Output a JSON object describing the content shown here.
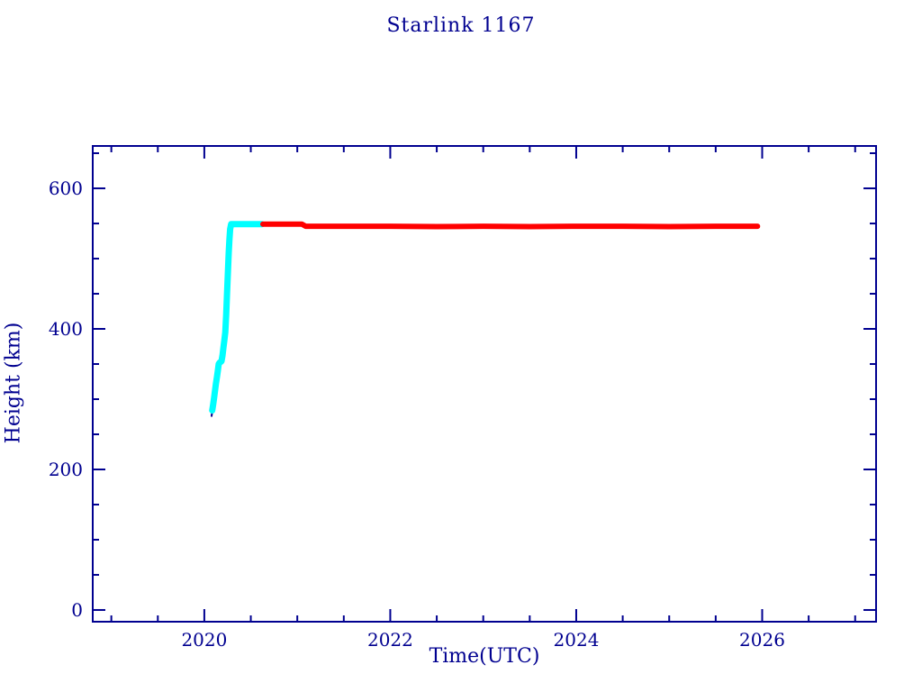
{
  "colors": {
    "background": "#ffffff",
    "axis": "#000090",
    "text": "#000090",
    "phase_raising": "#00ffff",
    "phase_operational": "#ff0000"
  },
  "chart_data": {
    "type": "line",
    "title": "Starlink 1167",
    "xlabel": "Time(UTC)",
    "ylabel": "Height (km)",
    "xlim": [
      2018.8,
      2027.225
    ],
    "ylim": [
      -16.7,
      660.3
    ],
    "grid": false,
    "legend": "none",
    "x_major_ticks": [
      2020,
      2022,
      2024,
      2026
    ],
    "x_tick_labels": [
      "2020",
      "2022",
      "2024",
      "2026"
    ],
    "x_minor_step": 0.5,
    "y_major_ticks": [
      0,
      200,
      400,
      600
    ],
    "y_tick_labels": [
      "0",
      "200",
      "400",
      "600"
    ],
    "y_minor_step": 50,
    "series": [
      {
        "name": "track-start-stub",
        "color": "#000090",
        "width": 2,
        "points": [
          [
            2020.078,
            276
          ],
          [
            2020.088,
            285
          ]
        ]
      },
      {
        "name": "orbit-raising-phase",
        "color": "#00ffff",
        "width": 7,
        "points": [
          [
            2020.085,
            284
          ],
          [
            2020.095,
            292
          ],
          [
            2020.105,
            302
          ],
          [
            2020.115,
            312
          ],
          [
            2020.125,
            322
          ],
          [
            2020.135,
            331
          ],
          [
            2020.145,
            340
          ],
          [
            2020.155,
            350
          ],
          [
            2020.165,
            352
          ],
          [
            2020.185,
            354
          ],
          [
            2020.195,
            362
          ],
          [
            2020.205,
            373
          ],
          [
            2020.215,
            383
          ],
          [
            2020.225,
            395
          ],
          [
            2020.235,
            420
          ],
          [
            2020.245,
            452
          ],
          [
            2020.255,
            483
          ],
          [
            2020.262,
            508
          ],
          [
            2020.27,
            527
          ],
          [
            2020.278,
            542
          ],
          [
            2020.288,
            549
          ],
          [
            2020.62,
            549
          ]
        ]
      },
      {
        "name": "operational-phase",
        "color": "#ff0000",
        "width": 6,
        "points": [
          [
            2020.63,
            549
          ],
          [
            2021.05,
            549
          ],
          [
            2021.09,
            546
          ],
          [
            2021.5,
            546
          ],
          [
            2022.0,
            546
          ],
          [
            2022.5,
            545.5
          ],
          [
            2023.0,
            546
          ],
          [
            2023.5,
            545.5
          ],
          [
            2024.0,
            546
          ],
          [
            2024.5,
            546
          ],
          [
            2025.0,
            545.5
          ],
          [
            2025.5,
            546
          ],
          [
            2025.95,
            546
          ]
        ]
      }
    ]
  }
}
